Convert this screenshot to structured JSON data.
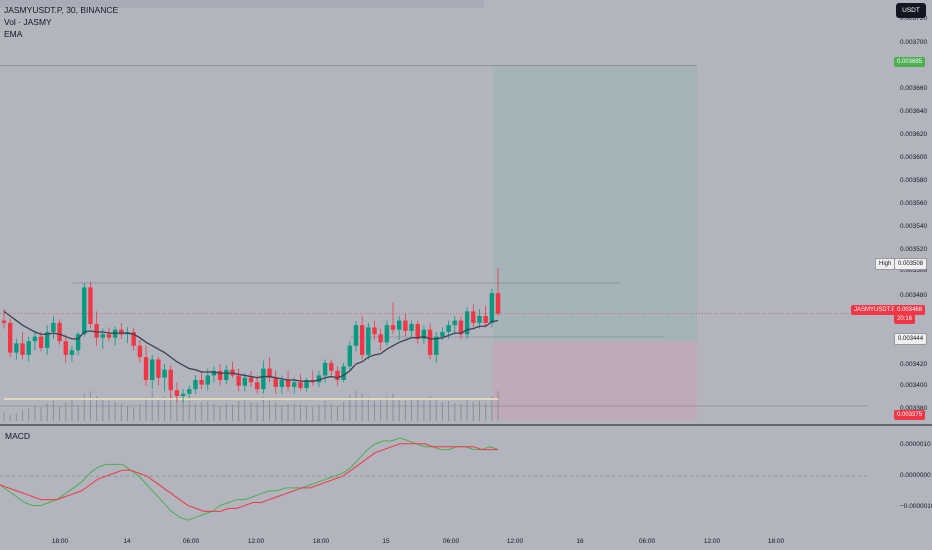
{
  "legend": {
    "symbol_line": "JASMYUSDT.P, 30, BINANCE",
    "volume_line": "Vol · JASMY",
    "ema_line": "EMA",
    "macd_label": "MACD"
  },
  "scale_button": "USDT",
  "price_axis": {
    "ticks": [
      "0.003720",
      "0.003700",
      "0.003660",
      "0.003640",
      "0.003620",
      "0.003600",
      "0.003580",
      "0.003560",
      "0.003540",
      "0.003520",
      "0.003500",
      "0.003480",
      "0.003420",
      "0.003400",
      "0.003380"
    ],
    "target_tag": "0.003685",
    "high_label": "High",
    "high_tag": "0.003508",
    "symbol_tag": "JASMYUSDT.P",
    "last_price_tag": "0.003468",
    "countdown": "20:16",
    "entry_tag": "0.003444",
    "stop_tag": "0.003375"
  },
  "macd_axis": {
    "ticks": [
      "0.0000010",
      "0.0000000",
      "−0.0000010"
    ]
  },
  "time_axis": {
    "labels": [
      "18:00",
      "14",
      "06:00",
      "12:00",
      "18:00",
      "15",
      "06:00",
      "12:00",
      "16",
      "06:00",
      "12:00",
      "18:00"
    ]
  },
  "colors": {
    "background": "#b2b5be",
    "up": "#089981",
    "down": "#f23645",
    "ema": "#3d4150",
    "macd": "#4caf50",
    "signal": "#f23645",
    "target_zone": "#9fb4b6",
    "stop_zone": "#bfa8b8"
  },
  "chart_data": {
    "type": "candlestick",
    "symbol": "JASMYUSDT.P",
    "interval": "30",
    "exchange": "BINANCE",
    "ohlc": [
      [
        0.003462,
        0.003472,
        0.003455,
        0.00346
      ],
      [
        0.00346,
        0.003464,
        0.00343,
        0.003434
      ],
      [
        0.003434,
        0.003446,
        0.003428,
        0.003442
      ],
      [
        0.003442,
        0.003452,
        0.003428,
        0.003432
      ],
      [
        0.003432,
        0.003448,
        0.003426,
        0.003444
      ],
      [
        0.003444,
        0.003453,
        0.003436,
        0.003448
      ],
      [
        0.003448,
        0.003452,
        0.003435,
        0.003438
      ],
      [
        0.003438,
        0.003458,
        0.003432,
        0.003452
      ],
      [
        0.003452,
        0.003466,
        0.003446,
        0.00346
      ],
      [
        0.00346,
        0.003463,
        0.003441,
        0.003444
      ],
      [
        0.003444,
        0.00345,
        0.003425,
        0.003432
      ],
      [
        0.003432,
        0.00344,
        0.003426,
        0.003436
      ],
      [
        0.003436,
        0.003452,
        0.003432,
        0.00345
      ],
      [
        0.00345,
        0.003495,
        0.003448,
        0.003491
      ],
      [
        0.003491,
        0.003496,
        0.003455,
        0.003459
      ],
      [
        0.003459,
        0.00347,
        0.00344,
        0.003447
      ],
      [
        0.003447,
        0.003455,
        0.003437,
        0.00345
      ],
      [
        0.00345,
        0.003456,
        0.003444,
        0.003447
      ],
      [
        0.003447,
        0.003457,
        0.00344,
        0.003454
      ],
      [
        0.003454,
        0.00346,
        0.003446,
        0.00345
      ],
      [
        0.00345,
        0.003456,
        0.003442,
        0.003452
      ],
      [
        0.003452,
        0.003456,
        0.003436,
        0.00344
      ],
      [
        0.00344,
        0.003445,
        0.003425,
        0.00343
      ],
      [
        0.00343,
        0.00344,
        0.003405,
        0.00341
      ],
      [
        0.00341,
        0.003432,
        0.003402,
        0.003428
      ],
      [
        0.003428,
        0.00343,
        0.003405,
        0.003412
      ],
      [
        0.003412,
        0.003424,
        0.0034,
        0.003419
      ],
      [
        0.003419,
        0.003423,
        0.003394,
        0.003401
      ],
      [
        0.003401,
        0.003408,
        0.003391,
        0.003396
      ],
      [
        0.003396,
        0.003402,
        0.00339,
        0.003398
      ],
      [
        0.003398,
        0.003405,
        0.003394,
        0.003402
      ],
      [
        0.003402,
        0.003414,
        0.003398,
        0.00341
      ],
      [
        0.00341,
        0.003418,
        0.003402,
        0.003406
      ],
      [
        0.003406,
        0.00342,
        0.003401,
        0.003414
      ],
      [
        0.003414,
        0.003422,
        0.003408,
        0.003418
      ],
      [
        0.003418,
        0.003424,
        0.003405,
        0.00341
      ],
      [
        0.00341,
        0.003423,
        0.003406,
        0.003419
      ],
      [
        0.003419,
        0.003426,
        0.003412,
        0.003414
      ],
      [
        0.003414,
        0.00342,
        0.0034,
        0.003405
      ],
      [
        0.003405,
        0.003416,
        0.0034,
        0.003412
      ],
      [
        0.003412,
        0.003418,
        0.003404,
        0.003408
      ],
      [
        0.003408,
        0.003414,
        0.003398,
        0.003402
      ],
      [
        0.003402,
        0.003427,
        0.003398,
        0.00342
      ],
      [
        0.00342,
        0.00343,
        0.003408,
        0.003412
      ],
      [
        0.003412,
        0.003418,
        0.003398,
        0.003404
      ],
      [
        0.003404,
        0.003414,
        0.003398,
        0.00341
      ],
      [
        0.00341,
        0.003418,
        0.0034,
        0.003404
      ],
      [
        0.003404,
        0.003412,
        0.003398,
        0.003408
      ],
      [
        0.003408,
        0.003415,
        0.003401,
        0.003403
      ],
      [
        0.003403,
        0.003412,
        0.0034,
        0.00341
      ],
      [
        0.00341,
        0.003418,
        0.003405,
        0.003408
      ],
      [
        0.003408,
        0.003418,
        0.003404,
        0.003414
      ],
      [
        0.003414,
        0.003428,
        0.003408,
        0.003425
      ],
      [
        0.003425,
        0.003428,
        0.003414,
        0.003418
      ],
      [
        0.003418,
        0.003422,
        0.003405,
        0.00341
      ],
      [
        0.00341,
        0.003425,
        0.003408,
        0.003422
      ],
      [
        0.003422,
        0.003444,
        0.003418,
        0.00344
      ],
      [
        0.00344,
        0.003462,
        0.003435,
        0.003458
      ],
      [
        0.003458,
        0.003466,
        0.003428,
        0.003432
      ],
      [
        0.003432,
        0.00346,
        0.003428,
        0.003456
      ],
      [
        0.003456,
        0.003462,
        0.003445,
        0.00345
      ],
      [
        0.00345,
        0.003455,
        0.003436,
        0.003443
      ],
      [
        0.003443,
        0.003462,
        0.00344,
        0.003458
      ],
      [
        0.003458,
        0.003478,
        0.00345,
        0.003454
      ],
      [
        0.003454,
        0.003466,
        0.003445,
        0.003462
      ],
      [
        0.003462,
        0.003468,
        0.003448,
        0.003453
      ],
      [
        0.003453,
        0.003462,
        0.003448,
        0.003459
      ],
      [
        0.003459,
        0.003462,
        0.003442,
        0.003446
      ],
      [
        0.003446,
        0.003458,
        0.003441,
        0.003454
      ],
      [
        0.003454,
        0.00346,
        0.003428,
        0.003432
      ],
      [
        0.003432,
        0.003452,
        0.003425,
        0.003448
      ],
      [
        0.003448,
        0.003456,
        0.003445,
        0.003452
      ],
      [
        0.003452,
        0.003462,
        0.003446,
        0.003458
      ],
      [
        0.003458,
        0.003466,
        0.00345,
        0.003462
      ],
      [
        0.003462,
        0.003466,
        0.003446,
        0.00345
      ],
      [
        0.00345,
        0.003474,
        0.003446,
        0.00347
      ],
      [
        0.00347,
        0.003476,
        0.003456,
        0.00346
      ],
      [
        0.00346,
        0.003472,
        0.003455,
        0.003466
      ],
      [
        0.003466,
        0.003475,
        0.003456,
        0.00346
      ],
      [
        0.00346,
        0.00349,
        0.003456,
        0.003486
      ],
      [
        0.003486,
        0.003508,
        0.003466,
        0.003468
      ]
    ],
    "ema": [
      0.00347,
      0.003466,
      0.003462,
      0.003458,
      0.003455,
      0.003452,
      0.00345,
      0.00345,
      0.003451,
      0.00345,
      0.003448,
      0.003446,
      0.003446,
      0.003452,
      0.003453,
      0.003452,
      0.003452,
      0.003451,
      0.003451,
      0.003451,
      0.003451,
      0.00345,
      0.003447,
      0.003443,
      0.00344,
      0.003437,
      0.003434,
      0.00343,
      0.003426,
      0.003423,
      0.00342,
      0.003419,
      0.003417,
      0.003417,
      0.003417,
      0.003416,
      0.003416,
      0.003416,
      0.003415,
      0.003414,
      0.003413,
      0.003412,
      0.003413,
      0.003413,
      0.003412,
      0.003411,
      0.00341,
      0.00341,
      0.003409,
      0.003409,
      0.003409,
      0.00341,
      0.003412,
      0.003413,
      0.003412,
      0.003414,
      0.003418,
      0.003424,
      0.003426,
      0.00343,
      0.003432,
      0.003433,
      0.003437,
      0.00344,
      0.003443,
      0.003445,
      0.003447,
      0.003447,
      0.003448,
      0.003446,
      0.003446,
      0.003447,
      0.003449,
      0.003451,
      0.003451,
      0.003454,
      0.003455,
      0.003457,
      0.003457,
      0.003461,
      0.003462
    ],
    "volume": [
      0.18,
      0.12,
      0.16,
      0.22,
      0.25,
      0.3,
      0.28,
      0.35,
      0.4,
      0.3,
      0.38,
      0.45,
      0.32,
      0.55,
      0.6,
      0.5,
      0.42,
      0.4,
      0.38,
      0.35,
      0.3,
      0.28,
      0.34,
      0.48,
      0.6,
      0.45,
      0.5,
      0.55,
      0.52,
      0.48,
      0.4,
      0.35,
      0.38,
      0.4,
      0.35,
      0.3,
      0.36,
      0.33,
      0.4,
      0.42,
      0.38,
      0.36,
      0.48,
      0.4,
      0.36,
      0.32,
      0.34,
      0.35,
      0.33,
      0.3,
      0.28,
      0.32,
      0.4,
      0.35,
      0.3,
      0.38,
      0.52,
      0.6,
      0.55,
      0.48,
      0.4,
      0.42,
      0.5,
      0.55,
      0.45,
      0.4,
      0.42,
      0.44,
      0.4,
      0.5,
      0.46,
      0.38,
      0.4,
      0.36,
      0.34,
      0.42,
      0.38,
      0.4,
      0.36,
      0.5,
      0.6
    ],
    "macd": [
      -3e-07,
      -5e-07,
      -7e-07,
      -9e-07,
      -1e-06,
      -1e-06,
      -9e-07,
      -8e-07,
      -6e-07,
      -4e-07,
      -2e-07,
      1e-07,
      3e-07,
      4e-07,
      4e-07,
      4e-07,
      2e-07,
      0.0,
      -3e-07,
      -6e-07,
      -9e-07,
      -1.2e-06,
      -1.4e-06,
      -1.5e-06,
      -1.4e-06,
      -1.3e-06,
      -1.2e-06,
      -1e-06,
      -9e-07,
      -8e-07,
      -8e-07,
      -7e-07,
      -6e-07,
      -5e-07,
      -5e-07,
      -4e-07,
      -4e-07,
      -4e-07,
      -3e-07,
      -2e-07,
      -1e-07,
      0.0,
      1e-07,
      3e-07,
      6e-07,
      9e-07,
      1.1e-06,
      1.2e-06,
      1.2e-06,
      1.3e-06,
      1.2e-06,
      1.1e-06,
      1e-06,
      1e-06,
      9e-07,
      9e-07,
      1e-06,
      1e-06,
      9e-07,
      9e-07,
      1e-06,
      9e-07
    ],
    "signal": [
      -3e-07,
      -4e-07,
      -5e-07,
      -6e-07,
      -7e-07,
      -8e-07,
      -8e-07,
      -8e-07,
      -7e-07,
      -6e-07,
      -5e-07,
      -3e-07,
      -1e-07,
      0.0,
      1e-07,
      2e-07,
      2e-07,
      1e-07,
      0.0,
      -2e-07,
      -4e-07,
      -6e-07,
      -8e-07,
      -1e-06,
      -1.1e-06,
      -1.2e-06,
      -1.2e-06,
      -1.2e-06,
      -1.1e-06,
      -1.1e-06,
      -1e-06,
      -9e-07,
      -9e-07,
      -8e-07,
      -7e-07,
      -6e-07,
      -5e-07,
      -4e-07,
      -4e-07,
      -3e-07,
      -2e-07,
      -1e-07,
      0.0,
      2e-07,
      4e-07,
      6e-07,
      8e-07,
      9e-07,
      1e-06,
      1.1e-06,
      1.1e-06,
      1.1e-06,
      1.1e-06,
      1e-06,
      1e-06,
      1e-06,
      1e-06,
      1e-06,
      1e-06,
      9e-07,
      9e-07,
      9e-07
    ],
    "position": {
      "target": 0.003685,
      "entry": 0.003444,
      "stop": 0.003375
    },
    "price_range": [
      0.003375,
      0.003725
    ],
    "macd_range": [
      -1.7e-06,
      1.5e-06
    ]
  }
}
